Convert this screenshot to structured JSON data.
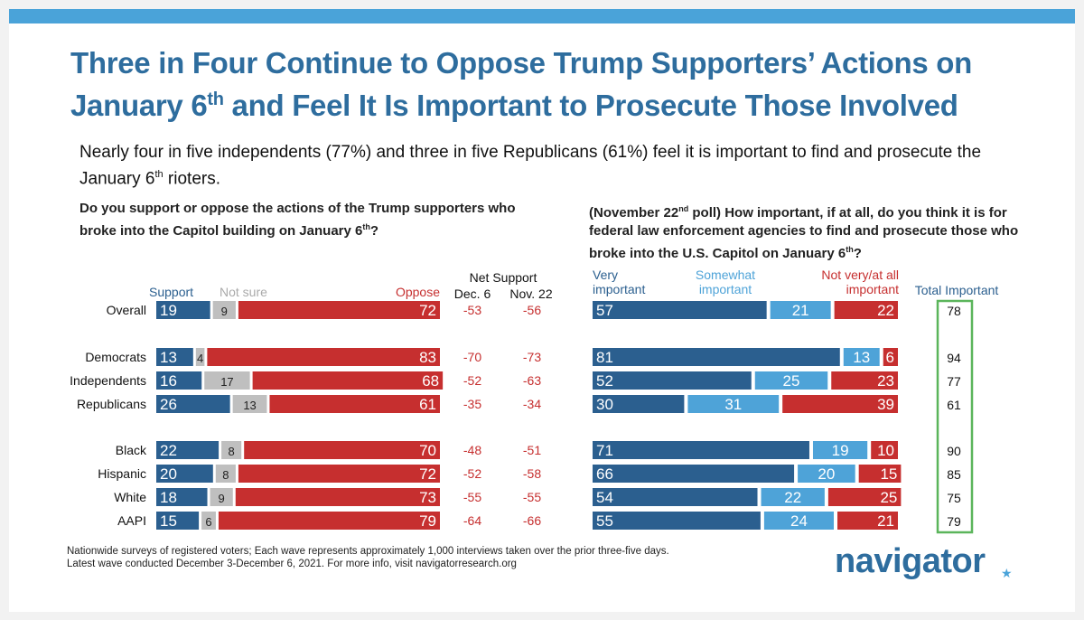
{
  "title": {
    "line1": "Three in Four Continue to Oppose Trump Supporters’ Actions on",
    "line2_pre": "January 6",
    "line2_sup": "th",
    "line2_post": " and Feel It Is Important to Prosecute Those Involved"
  },
  "subtitle": {
    "pre": "Nearly four in five independents (77%) and three in five Republicans (61%) feel it is important to find and prosecute the January 6",
    "sup": "th",
    "post": " rioters."
  },
  "left_question": {
    "pre": "Do you support or oppose the actions of the Trump supporters who broke into the Capitol building on January 6",
    "sup": "th",
    "post": "?"
  },
  "right_question": {
    "p1": "(November 22",
    "p1_sup": "nd",
    "p2": " poll) How important, if at all, do you think it is for federal law enforcement agencies to find and prosecute those who broke into the U.S. Capitol on January 6",
    "p2_sup": "th",
    "p3": "?"
  },
  "headers": {
    "support": "Support",
    "not_sure": "Not sure",
    "oppose": "Oppose",
    "net_support": "Net Support",
    "dec6": "Dec. 6",
    "nov22": "Nov. 22",
    "very_1": "Very",
    "very_2": "important",
    "somewhat_1": "Somewhat",
    "somewhat_2": "important",
    "notvery_1": "Not very/at all",
    "notvery_2": "important",
    "total_important": "Total Important"
  },
  "colors": {
    "support": "#2b5f8f",
    "not_sure": "#bfbfbf",
    "oppose": "#c62f2f",
    "very": "#2b5f8f",
    "somewhat": "#4ea3d8",
    "notvery": "#c62f2f",
    "title": "#2e6d9e",
    "box": "#5bb55b"
  },
  "chart_data": [
    {
      "type": "bar",
      "title": "Do you support or oppose the actions of the Trump supporters who broke into the Capitol building on January 6th?",
      "categories": [
        "Overall",
        "Democrats",
        "Independents",
        "Republicans",
        "Black",
        "Hispanic",
        "White",
        "AAPI"
      ],
      "series": [
        {
          "name": "Support",
          "values": [
            19,
            13,
            16,
            26,
            22,
            20,
            18,
            15
          ]
        },
        {
          "name": "Not sure",
          "values": [
            9,
            4,
            17,
            13,
            8,
            8,
            9,
            6
          ]
        },
        {
          "name": "Oppose",
          "values": [
            72,
            83,
            68,
            61,
            70,
            72,
            73,
            79
          ]
        }
      ],
      "net_support": {
        "Dec. 6": [
          -53,
          -70,
          -52,
          -35,
          -48,
          -52,
          -55,
          -64
        ],
        "Nov. 22": [
          -56,
          -73,
          -63,
          -34,
          -51,
          -58,
          -55,
          -66
        ]
      },
      "stacked": true
    },
    {
      "type": "bar",
      "title": "(November 22nd poll) How important, if at all, do you think it is for federal law enforcement agencies to find and prosecute those who broke into the U.S. Capitol on January 6th?",
      "categories": [
        "Overall",
        "Democrats",
        "Independents",
        "Republicans",
        "Black",
        "Hispanic",
        "White",
        "AAPI"
      ],
      "series": [
        {
          "name": "Very important",
          "values": [
            57,
            81,
            52,
            30,
            71,
            66,
            54,
            55
          ]
        },
        {
          "name": "Somewhat important",
          "values": [
            21,
            13,
            25,
            31,
            19,
            20,
            22,
            24
          ]
        },
        {
          "name": "Not very/at all important",
          "values": [
            22,
            6,
            23,
            39,
            10,
            15,
            25,
            21
          ]
        }
      ],
      "total_important": [
        78,
        94,
        77,
        61,
        90,
        85,
        75,
        79
      ],
      "stacked": true
    }
  ],
  "footer": {
    "line1": "Nationwide surveys of registered voters; Each wave represents approximately 1,000 interviews taken over the prior three-five days.",
    "line2": "Latest wave conducted December 3-December 6, 2021. For more info, visit navigatorresearch.org"
  },
  "logo": "navigator",
  "logo_mark": "★"
}
